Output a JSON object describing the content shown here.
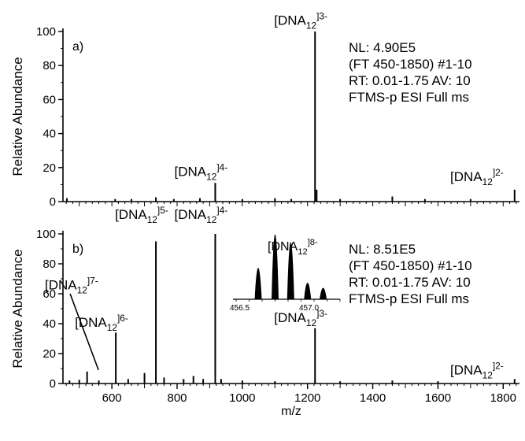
{
  "chart_data": [
    {
      "type": "line",
      "panel_label": "a)",
      "ylabel": "Relative Abundance",
      "xlabel": "",
      "xlim": [
        450,
        1850
      ],
      "ylim": [
        0,
        100
      ],
      "y_ticks": [
        "0",
        "20",
        "40",
        "60",
        "80",
        "100"
      ],
      "info_lines": [
        "NL: 4.90E5",
        "(FT 450-1850) #1-10",
        "RT: 0.01-1.75  AV: 10",
        "FTMS-p ESI Full ms"
      ],
      "peaks": [
        {
          "mz": 917,
          "intensity": 11
        },
        {
          "mz": 1223,
          "intensity": 100
        },
        {
          "mz": 1228,
          "intensity": 7
        },
        {
          "mz": 1835,
          "intensity": 7
        },
        {
          "mz": 462,
          "intensity": 2
        },
        {
          "mz": 610,
          "intensity": 1.5
        },
        {
          "mz": 660,
          "intensity": 1.5
        },
        {
          "mz": 735,
          "intensity": 2.5
        },
        {
          "mz": 790,
          "intensity": 1.5
        },
        {
          "mz": 870,
          "intensity": 2
        },
        {
          "mz": 1000,
          "intensity": 1.5
        },
        {
          "mz": 1100,
          "intensity": 2
        },
        {
          "mz": 1150,
          "intensity": 1.5
        },
        {
          "mz": 1300,
          "intensity": 1.5
        },
        {
          "mz": 1460,
          "intensity": 3
        },
        {
          "mz": 1560,
          "intensity": 1.5
        },
        {
          "mz": 1700,
          "intensity": 1.5
        }
      ],
      "annotations": [
        {
          "mz": 1223,
          "y": 104,
          "base": "[DNA",
          "sub": "12",
          "sup": "]3-"
        },
        {
          "mz": 917,
          "y": 15,
          "base": "[DNA",
          "sub": "12",
          "sup": "]4-"
        },
        {
          "mz": 1800,
          "y": 12,
          "base": "[DNA",
          "sub": "12",
          "sup": "]2-"
        }
      ]
    },
    {
      "type": "line",
      "panel_label": "b)",
      "ylabel": "Relative Abundance",
      "xlabel": "m/z",
      "xlim": [
        450,
        1850
      ],
      "ylim": [
        0,
        100
      ],
      "y_ticks": [
        "0",
        "20",
        "40",
        "60",
        "80",
        "100"
      ],
      "x_ticks": [
        600,
        800,
        1000,
        1200,
        1400,
        1600,
        1800
      ],
      "info_lines": [
        "NL: 8.51E5",
        "(FT 450-1850) #1-10",
        "RT: 0.01-1.75  AV: 10",
        "FTMS-p ESI Full ms"
      ],
      "peaks": [
        {
          "mz": 524,
          "intensity": 8
        },
        {
          "mz": 612,
          "intensity": 34
        },
        {
          "mz": 735,
          "intensity": 95
        },
        {
          "mz": 917,
          "intensity": 100
        },
        {
          "mz": 1223,
          "intensity": 37
        },
        {
          "mz": 1835,
          "intensity": 3
        },
        {
          "mz": 470,
          "intensity": 2
        },
        {
          "mz": 500,
          "intensity": 2.5
        },
        {
          "mz": 560,
          "intensity": 2
        },
        {
          "mz": 650,
          "intensity": 3
        },
        {
          "mz": 700,
          "intensity": 7
        },
        {
          "mz": 760,
          "intensity": 4
        },
        {
          "mz": 820,
          "intensity": 3
        },
        {
          "mz": 850,
          "intensity": 5
        },
        {
          "mz": 880,
          "intensity": 3
        },
        {
          "mz": 935,
          "intensity": 3
        },
        {
          "mz": 1000,
          "intensity": 2
        },
        {
          "mz": 1100,
          "intensity": 1.5
        },
        {
          "mz": 1300,
          "intensity": 1.5
        },
        {
          "mz": 1460,
          "intensity": 2
        },
        {
          "mz": 1600,
          "intensity": 1.5
        }
      ],
      "annotations": [
        {
          "mz": 735,
          "y": 110,
          "base": "[DNA",
          "sub": "12",
          "sup": "]5-"
        },
        {
          "mz": 917,
          "y": 110,
          "base": "[DNA",
          "sub": "12",
          "sup": "]4-"
        },
        {
          "mz": 612,
          "y": 38,
          "base": "[DNA",
          "sub": "12",
          "sup": "]6-"
        },
        {
          "mz": 520,
          "y": 63,
          "base": "[DNA",
          "sub": "12",
          "sup": "]7-"
        },
        {
          "mz": 1223,
          "y": 41,
          "base": "[DNA",
          "sub": "12",
          "sup": "]3-"
        },
        {
          "mz": 1800,
          "y": 6,
          "base": "[DNA",
          "sub": "12",
          "sup": "]2-"
        }
      ],
      "callout": {
        "from_mz": 525,
        "from_y": 60,
        "to_mz": 530,
        "to_y": 9
      },
      "inset": {
        "x_ticks": [
          "456.5",
          "457.0"
        ],
        "label": {
          "base": "[DNA",
          "sub": "12",
          "sup": "]8-"
        },
        "peaks": [
          {
            "mz": 456.62,
            "intensity": 48
          },
          {
            "mz": 456.75,
            "intensity": 100
          },
          {
            "mz": 456.87,
            "intensity": 88
          },
          {
            "mz": 457.0,
            "intensity": 25
          },
          {
            "mz": 457.12,
            "intensity": 17
          }
        ]
      }
    }
  ]
}
